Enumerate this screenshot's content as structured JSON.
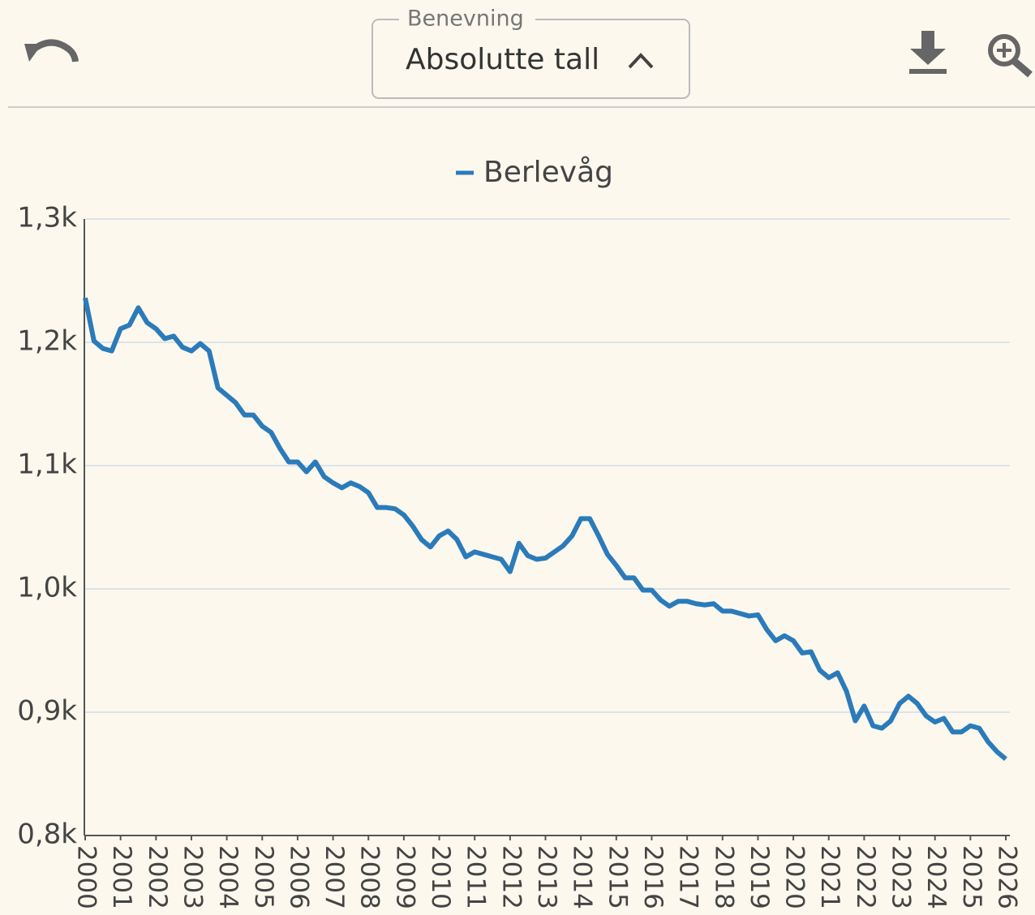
{
  "toolbar": {
    "dropdown_label": "Benevning",
    "dropdown_value": "Absolutte tall"
  },
  "chart_data": {
    "type": "line",
    "x": [
      2000,
      2000.25,
      2000.5,
      2000.75,
      2001,
      2001.25,
      2001.5,
      2001.75,
      2002,
      2002.25,
      2002.5,
      2002.75,
      2003,
      2003.25,
      2003.5,
      2003.75,
      2004,
      2004.25,
      2004.5,
      2004.75,
      2005,
      2005.25,
      2005.5,
      2005.75,
      2006,
      2006.25,
      2006.5,
      2006.75,
      2007,
      2007.25,
      2007.5,
      2007.75,
      2008,
      2008.25,
      2008.5,
      2008.75,
      2009,
      2009.25,
      2009.5,
      2009.75,
      2010,
      2010.25,
      2010.5,
      2010.75,
      2011,
      2011.25,
      2011.5,
      2011.75,
      2012,
      2012.25,
      2012.5,
      2012.75,
      2013,
      2013.25,
      2013.5,
      2013.75,
      2014,
      2014.25,
      2014.5,
      2014.75,
      2015,
      2015.25,
      2015.5,
      2015.75,
      2016,
      2016.25,
      2016.5,
      2016.75,
      2017,
      2017.25,
      2017.5,
      2017.75,
      2018,
      2018.25,
      2018.5,
      2018.75,
      2019,
      2019.25,
      2019.5,
      2019.75,
      2020,
      2020.25,
      2020.5,
      2020.75,
      2021,
      2021.25,
      2021.5,
      2021.75,
      2022,
      2022.25,
      2022.5,
      2022.75,
      2023,
      2023.25,
      2023.5,
      2023.75,
      2024,
      2024.25,
      2024.5,
      2024.75,
      2025,
      2025.25,
      2025.5,
      2025.75,
      2026
    ],
    "series": [
      {
        "name": "Berlevåg",
        "color": "#2b7bba",
        "values": [
          1236,
          1201,
          1195,
          1193,
          1211,
          1214,
          1228,
          1216,
          1211,
          1203,
          1205,
          1196,
          1193,
          1199,
          1193,
          1163,
          1157,
          1151,
          1141,
          1141,
          1132,
          1127,
          1114,
          1103,
          1103,
          1095,
          1103,
          1091,
          1086,
          1082,
          1086,
          1083,
          1078,
          1066,
          1066,
          1065,
          1060,
          1051,
          1040,
          1034,
          1043,
          1047,
          1040,
          1026,
          1030,
          1028,
          1026,
          1024,
          1014,
          1037,
          1027,
          1024,
          1025,
          1030,
          1035,
          1043,
          1057,
          1057,
          1043,
          1028,
          1019,
          1009,
          1009,
          999,
          999,
          991,
          986,
          990,
          990,
          988,
          987,
          988,
          982,
          982,
          980,
          978,
          979,
          967,
          958,
          962,
          958,
          948,
          949,
          934,
          928,
          932,
          917,
          893,
          905,
          889,
          887,
          893,
          907,
          913,
          907,
          897,
          892,
          895,
          884,
          884,
          889,
          887,
          876,
          868,
          862
        ]
      }
    ],
    "xlim": [
      2000,
      2026
    ],
    "xticks": [
      2000,
      2001,
      2002,
      2003,
      2004,
      2005,
      2006,
      2007,
      2008,
      2009,
      2010,
      2011,
      2012,
      2013,
      2014,
      2015,
      2016,
      2017,
      2018,
      2019,
      2020,
      2021,
      2022,
      2023,
      2024,
      2025,
      2026
    ],
    "ylim": [
      800,
      1300
    ],
    "yticks": [
      {
        "value": 800,
        "label": "0,8k"
      },
      {
        "value": 900,
        "label": "0,9k"
      },
      {
        "value": 1000,
        "label": "1,0k"
      },
      {
        "value": 1100,
        "label": "1,1k"
      },
      {
        "value": 1200,
        "label": "1,2k"
      },
      {
        "value": 1300,
        "label": "1,3k"
      }
    ],
    "grid": true
  }
}
